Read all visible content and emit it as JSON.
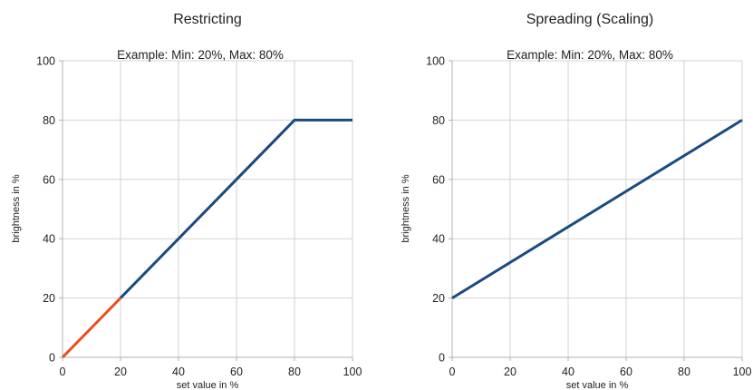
{
  "chart_data": [
    {
      "type": "line",
      "title": "Restricting",
      "subtitle": "Example: Min: 20%, Max: 80%",
      "xlabel": "set value in %",
      "ylabel": "brightness in %",
      "xlim": [
        0,
        100
      ],
      "ylim": [
        0,
        100
      ],
      "xticks": [
        0,
        20,
        40,
        60,
        80,
        100
      ],
      "yticks": [
        0,
        20,
        40,
        60,
        80,
        100
      ],
      "grid": true,
      "series": [
        {
          "color": "#ee4d1a",
          "points": [
            [
              0,
              0
            ],
            [
              20,
              20
            ]
          ]
        },
        {
          "color": "#1a4a80",
          "points": [
            [
              20,
              20
            ],
            [
              80,
              80
            ],
            [
              100,
              80
            ]
          ]
        }
      ]
    },
    {
      "type": "line",
      "title": "Spreading (Scaling)",
      "subtitle": "Example: Min: 20%, Max: 80%",
      "xlabel": "set value in %",
      "ylabel": "brightness in %",
      "xlim": [
        0,
        100
      ],
      "ylim": [
        0,
        100
      ],
      "xticks": [
        0,
        20,
        40,
        60,
        80,
        100
      ],
      "yticks": [
        0,
        20,
        40,
        60,
        80,
        100
      ],
      "grid": true,
      "series": [
        {
          "color": "#1a4a80",
          "points": [
            [
              0,
              20
            ],
            [
              100,
              80
            ]
          ]
        }
      ]
    }
  ]
}
